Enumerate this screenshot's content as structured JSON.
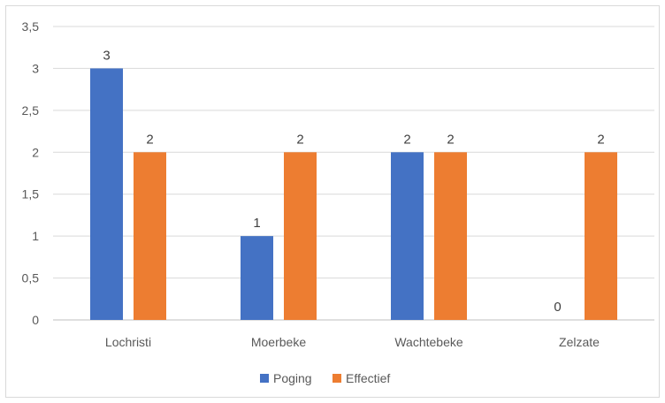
{
  "chart_data": {
    "type": "bar",
    "categories": [
      "Lochristi",
      "Moerbeke",
      "Wachtebeke",
      "Zelzate"
    ],
    "series": [
      {
        "name": "Poging",
        "values": [
          3,
          1,
          2,
          0
        ],
        "color": "#4472c4"
      },
      {
        "name": "Effectief",
        "values": [
          2,
          2,
          2,
          2
        ],
        "color": "#ed7d31"
      }
    ],
    "ylim": [
      0,
      3.5
    ],
    "yticks": [
      "0",
      "0,5",
      "1",
      "1,5",
      "2",
      "2,5",
      "3",
      "3,5"
    ],
    "grid": true,
    "legend": "bottom",
    "data_labels": true
  }
}
